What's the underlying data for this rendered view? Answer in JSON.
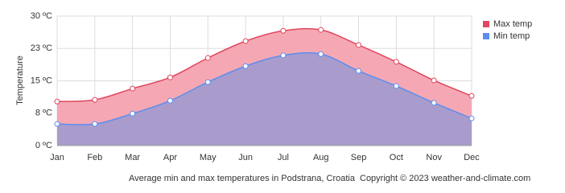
{
  "chart_data": {
    "type": "area",
    "y_label": "Temperature",
    "caption": "Average min and max temperatures in Podstrana, Croatia",
    "copyright": "Copyright © 2023  weather-and-climate.com",
    "categories": [
      "Jan",
      "Feb",
      "Mar",
      "Apr",
      "May",
      "Jun",
      "Jul",
      "Aug",
      "Sep",
      "Oct",
      "Nov",
      "Dec"
    ],
    "series": [
      {
        "name": "Max temp",
        "color": "#e0465e",
        "fill": "#f5a8b3",
        "values": [
          10.2,
          10.6,
          13.2,
          15.8,
          20.3,
          24.2,
          26.6,
          26.8,
          23.3,
          19.4,
          15.1,
          11.5
        ]
      },
      {
        "name": "Min temp",
        "color": "#5b8def",
        "fill": "#a99ccc",
        "values": [
          5.0,
          5.0,
          7.4,
          10.4,
          14.7,
          18.4,
          20.9,
          21.2,
          17.3,
          13.8,
          9.9,
          6.3
        ]
      }
    ],
    "ylim": [
      0,
      30
    ],
    "yticks": [
      {
        "value": 0,
        "label": "0 ºC"
      },
      {
        "value": 7.5,
        "label": "8 ºC"
      },
      {
        "value": 15,
        "label": "15 ºC"
      },
      {
        "value": 22.5,
        "label": "23 ºC"
      },
      {
        "value": 30,
        "label": "30 ºC"
      }
    ],
    "grid": true,
    "legend": "top-right"
  }
}
